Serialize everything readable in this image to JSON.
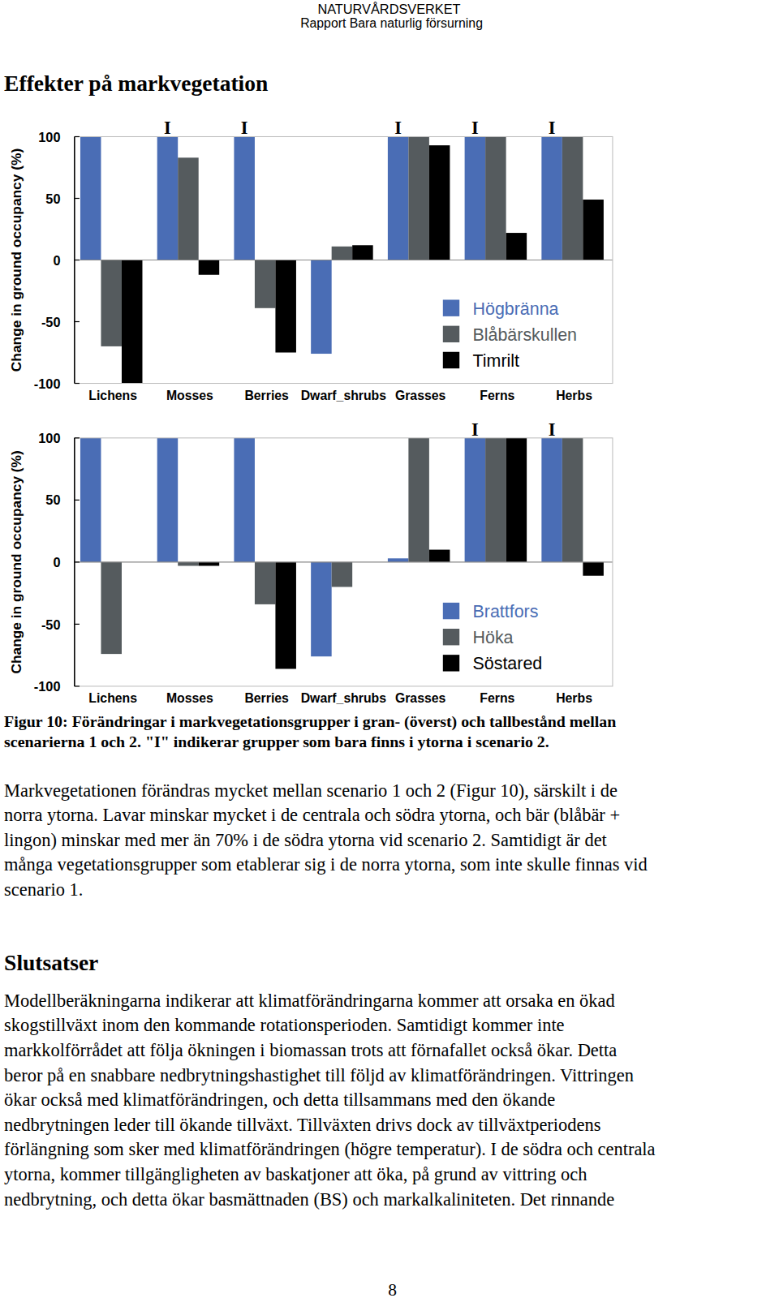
{
  "header": {
    "organization": "NATURVÅRDSVERKET",
    "report": "Rapport Bara naturlig försurning"
  },
  "section_title": "Effekter på markvegetation",
  "chart_data": [
    {
      "type": "bar",
      "y_label": "Change in ground occupancy (%)",
      "categories": [
        "Lichens",
        "Mosses",
        "Berries",
        "Dwarf_shrubs",
        "Grasses",
        "Ferns",
        "Herbs"
      ],
      "series": [
        {
          "name": "Högbränna",
          "color": "#4a6db5",
          "values": [
            100,
            100,
            100,
            -76,
            100,
            100,
            100
          ]
        },
        {
          "name": "Blåbärskullen",
          "color": "#555b5e",
          "values": [
            -70,
            83,
            -39,
            11,
            100,
            100,
            100
          ]
        },
        {
          "name": "Timrilt",
          "color": "#000000",
          "values": [
            -100,
            -12,
            -75,
            12,
            93,
            22,
            49
          ]
        }
      ],
      "ylim": [
        -100,
        100
      ],
      "yticks": [
        -100,
        -50,
        0,
        50,
        100
      ],
      "legend": "lower right",
      "annotations": [
        {
          "category": "Mosses",
          "label": "I"
        },
        {
          "category": "Berries",
          "label": "I"
        },
        {
          "category": "Grasses",
          "label": "I"
        },
        {
          "category": "Ferns",
          "label": "I"
        },
        {
          "category": "Herbs",
          "label": "I"
        }
      ]
    },
    {
      "type": "bar",
      "y_label": "Change in ground occupancy (%)",
      "categories": [
        "Lichens",
        "Mosses",
        "Berries",
        "Dwarf_shrubs",
        "Grasses",
        "Ferns",
        "Herbs"
      ],
      "series": [
        {
          "name": "Brattfors",
          "color": "#4a6db5",
          "values": [
            100,
            100,
            100,
            -76,
            3,
            100,
            100
          ]
        },
        {
          "name": "Höka",
          "color": "#555b5e",
          "values": [
            -74,
            -3,
            -34,
            -20,
            100,
            100,
            100
          ]
        },
        {
          "name": "Söstared",
          "color": "#000000",
          "values": [
            0,
            -3,
            -86,
            0,
            10,
            100,
            -11
          ]
        }
      ],
      "ylim": [
        -100,
        100
      ],
      "yticks": [
        -100,
        -50,
        0,
        50,
        100
      ],
      "legend": "lower right",
      "annotations": [
        {
          "category": "Ferns",
          "label": "I"
        },
        {
          "category": "Herbs",
          "label": "I"
        }
      ]
    }
  ],
  "caption": [
    "Figur 10: Förändringar i markvegetationsgrupper i gran- (överst) och tallbestånd mellan",
    "scenarierna 1 och 2. \"I\" indikerar grupper som bara finns i ytorna i scenario 2."
  ],
  "paragraph": [
    "Markvegetationen förändras mycket mellan scenario 1 och 2 (Figur 10), särskilt i de",
    "norra ytorna. Lavar minskar mycket i de centrala och södra ytorna, och bär (blåbär +",
    "lingon) minskar med mer än 70% i de södra ytorna vid scenario 2. Samtidigt är det",
    "många vegetationsgrupper som etablerar sig i de norra ytorna, som inte skulle finnas vid",
    "scenario 1."
  ],
  "subsection_title": "Slutsatser",
  "conclusions": [
    "Modellberäkningarna indikerar att klimatförändringarna kommer att orsaka en ökad",
    "skogstillväxt inom den kommande rotationsperioden. Samtidigt kommer inte",
    "markkolförrådet att följa ökningen i biomassan trots att förnafallet också ökar. Detta",
    "beror på en snabbare nedbrytningshastighet till följd av klimatförändringen. Vittringen",
    "ökar också med klimatförändringen, och detta tillsammans med den ökande",
    "nedbrytningen leder till ökande tillväxt. Tillväxten drivs dock av tillväxtperiodens",
    "förlängning som sker med klimatförändringen (högre temperatur). I de södra och centrala",
    "ytorna, kommer tillgängligheten av baskatjoner att öka, på grund av vittring och",
    "nedbrytning, och detta ökar basmättnaden (BS) och markalkaliniteten. Det rinnande"
  ],
  "page_number": "8"
}
